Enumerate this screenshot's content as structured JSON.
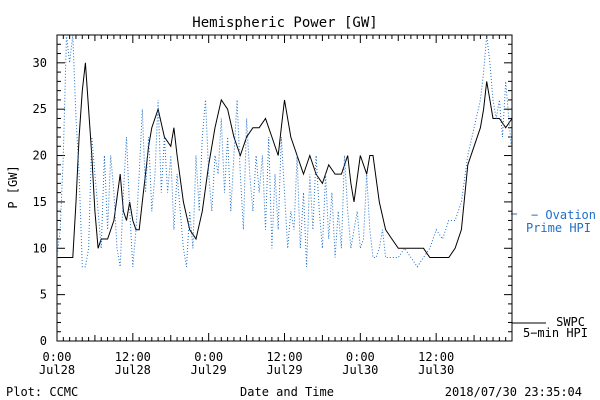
{
  "chart_data": {
    "type": "line",
    "title": "Hemispheric Power [GW]",
    "xlabel": "Date and Time",
    "ylabel": "P [GW]",
    "ylim": [
      0,
      33
    ],
    "xlim_hours": [
      0,
      72
    ],
    "y_ticks": [
      0,
      5,
      10,
      15,
      20,
      25,
      30
    ],
    "x_ticks": [
      {
        "hour": 0,
        "time": "0:00",
        "date": "Jul28"
      },
      {
        "hour": 12,
        "time": "12:00",
        "date": "Jul28"
      },
      {
        "hour": 24,
        "time": "0:00",
        "date": "Jul29"
      },
      {
        "hour": 36,
        "time": "12:00",
        "date": "Jul29"
      },
      {
        "hour": 48,
        "time": "0:00",
        "date": "Jul30"
      },
      {
        "hour": 60,
        "time": "12:00",
        "date": "Jul30"
      }
    ],
    "x_units": "hours since 2018-07-28 0:00 UTC",
    "series": [
      {
        "name": "SWPC 5-min HPI",
        "color": "#000000",
        "style": "solid",
        "x": [
          0,
          2.5,
          3,
          3.5,
          4,
          4.5,
          5,
          5.5,
          6,
          6.5,
          7,
          7.5,
          8,
          9,
          10,
          10.5,
          11,
          11.5,
          12,
          12.5,
          13,
          13.5,
          14,
          14.5,
          15,
          16,
          17,
          18,
          18.5,
          19,
          20,
          21,
          22,
          23,
          24,
          25,
          26,
          27,
          28,
          29,
          30,
          31,
          32,
          33,
          34,
          35,
          35.5,
          36,
          37,
          38,
          39,
          40,
          41,
          42,
          43,
          44,
          45,
          46,
          46.5,
          47,
          48,
          49,
          49.5,
          50,
          51,
          52,
          53,
          54,
          55,
          56,
          57,
          58,
          59,
          60,
          61,
          62,
          63,
          64,
          65,
          66,
          67,
          67.5,
          68,
          68.5,
          69,
          70,
          71,
          72
        ],
        "values": [
          9,
          9,
          15,
          22,
          27,
          30,
          25,
          20,
          14,
          10,
          11,
          11,
          11,
          13,
          18,
          14,
          13,
          15,
          13,
          12,
          12,
          15,
          18,
          21,
          23,
          25,
          22,
          21,
          23,
          20,
          15,
          12,
          11,
          14,
          19,
          23,
          26,
          25,
          22,
          20,
          22,
          23,
          23,
          24,
          22,
          20,
          23,
          26,
          22,
          20,
          18,
          20,
          18,
          17,
          19,
          18,
          18,
          20,
          17,
          15,
          20,
          18,
          20,
          20,
          15,
          12,
          11,
          10,
          10,
          10,
          10,
          10,
          9,
          9,
          9,
          9,
          10,
          12,
          19,
          21,
          23,
          25,
          28,
          26,
          24,
          24,
          23,
          24
        ]
      },
      {
        "name": "Ovation Prime HPI",
        "color": "#1f6fc9",
        "style": "dotted",
        "x": [
          0,
          0.5,
          1,
          1.5,
          2,
          2.5,
          3,
          3.5,
          4,
          4.5,
          5,
          5.5,
          6,
          6.5,
          7,
          7.5,
          8,
          8.5,
          9,
          9.5,
          10,
          10.5,
          11,
          11.5,
          12,
          12.5,
          13,
          13.5,
          14,
          14.5,
          15,
          15.5,
          16,
          16.5,
          17,
          17.5,
          18,
          18.5,
          19,
          19.5,
          20,
          20.5,
          21,
          21.5,
          22,
          22.5,
          23,
          23.5,
          24,
          24.5,
          25,
          25.5,
          26,
          26.5,
          27,
          27.5,
          28,
          28.5,
          29,
          29.5,
          30,
          30.5,
          31,
          31.5,
          32,
          32.5,
          33,
          33.5,
          34,
          34.5,
          35,
          35.5,
          36,
          36.5,
          37,
          37.5,
          38,
          38.5,
          39,
          39.5,
          40,
          40.5,
          41,
          41.5,
          42,
          42.5,
          43,
          43.5,
          44,
          44.5,
          45,
          45.5,
          46,
          46.5,
          47,
          47.5,
          48,
          48.5,
          49,
          49.5,
          50,
          50.5,
          51,
          51.5,
          52,
          53,
          54,
          55,
          56,
          57,
          58,
          59,
          60,
          61,
          62,
          63,
          64,
          65,
          66,
          67,
          67.5,
          68,
          68.5,
          69,
          69.5,
          70,
          70.5,
          71,
          71.5,
          72
        ],
        "values": [
          9,
          12,
          20,
          33,
          30,
          33,
          24,
          18,
          8,
          8,
          10,
          22,
          18,
          14,
          10,
          20,
          12,
          20,
          16,
          10,
          8,
          16,
          22,
          14,
          8,
          12,
          18,
          25,
          16,
          22,
          14,
          18,
          26,
          16,
          22,
          16,
          20,
          12,
          18,
          14,
          10,
          8,
          14,
          10,
          20,
          14,
          22,
          26,
          18,
          14,
          20,
          18,
          24,
          16,
          22,
          14,
          20,
          26,
          18,
          12,
          24,
          18,
          14,
          20,
          16,
          20,
          12,
          22,
          10,
          18,
          12,
          22,
          16,
          10,
          14,
          12,
          20,
          10,
          16,
          8,
          18,
          12,
          20,
          14,
          10,
          18,
          11,
          16,
          9,
          14,
          10,
          20,
          14,
          10,
          12,
          14,
          10,
          11,
          18,
          12,
          9,
          9,
          10,
          12,
          9,
          9,
          9,
          10,
          9,
          8,
          9,
          10,
          12,
          11,
          13,
          13,
          15,
          20,
          23,
          26,
          29,
          33,
          30,
          26,
          24,
          26,
          22,
          28,
          24,
          20
        ]
      }
    ],
    "legend": [
      {
        "line1": "− Ovation",
        "line2": "Prime HPI",
        "color": "#1f6fc9"
      },
      {
        "line1": "SWPC",
        "line2": "5−min HPI",
        "color": "#000000"
      }
    ],
    "footer_left": "Plot: CCMC",
    "footer_right": "2018/07/30 23:35:04",
    "grid": false
  }
}
